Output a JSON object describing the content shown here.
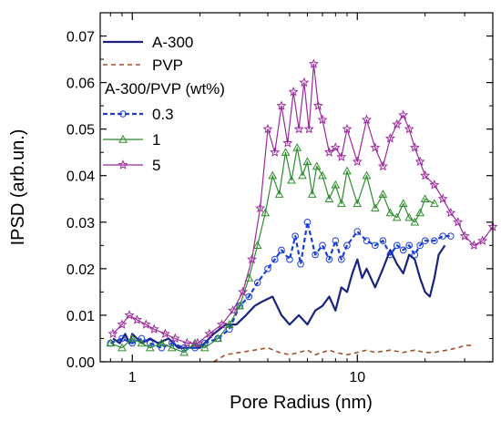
{
  "chart_data": {
    "type": "line",
    "xlabel": "Pore  Radius  (nm)",
    "ylabel": "IPSD  (arb.un.)",
    "xscale": "log",
    "xlim": [
      0.72,
      40
    ],
    "ylim": [
      0,
      0.075
    ],
    "x_ticks": [
      1,
      10
    ],
    "y_ticks": [
      0.0,
      0.01,
      0.02,
      0.03,
      0.04,
      0.05,
      0.06,
      0.07
    ],
    "y_tick_labels": [
      "0.00",
      "0.01",
      "0.02",
      "0.03",
      "0.04",
      "0.05",
      "0.06",
      "0.07"
    ],
    "legend_placement": "top-left",
    "legend_group_title": "A-300/PVP (wt%)",
    "series": [
      {
        "name": "A-300",
        "color": "#1a237e",
        "style": "solid",
        "marker": "none",
        "x": [
          0.82,
          0.88,
          0.93,
          0.97,
          1.0,
          1.05,
          1.1,
          1.2,
          1.3,
          1.45,
          1.6,
          1.8,
          2.0,
          2.3,
          2.6,
          2.9,
          3.2,
          3.5,
          3.8,
          4.2,
          4.6,
          5.0,
          5.5,
          6.0,
          6.5,
          7.0,
          7.5,
          8.0,
          8.5,
          9.0,
          9.5,
          10.0,
          10.5,
          11.0,
          12.0,
          13.0,
          14.0,
          15.0,
          16.0,
          17.0,
          18.0,
          19.0,
          20.0,
          21.0,
          22.0,
          23.0,
          24.5
        ],
        "y": [
          0.005,
          0.004,
          0.006,
          0.004,
          0.006,
          0.005,
          0.004,
          0.005,
          0.004,
          0.005,
          0.003,
          0.003,
          0.003,
          0.006,
          0.008,
          0.008,
          0.01,
          0.012,
          0.013,
          0.014,
          0.01,
          0.008,
          0.01,
          0.008,
          0.011,
          0.012,
          0.014,
          0.011,
          0.016,
          0.015,
          0.019,
          0.022,
          0.018,
          0.02,
          0.016,
          0.02,
          0.024,
          0.021,
          0.019,
          0.023,
          0.022,
          0.018,
          0.015,
          0.014,
          0.018,
          0.023,
          0.025
        ]
      },
      {
        "name": "PVP",
        "color": "#a0522d",
        "style": "dashed",
        "marker": "none",
        "x": [
          2.3,
          2.6,
          3.0,
          3.5,
          4.0,
          4.5,
          5.0,
          5.5,
          6.0,
          6.5,
          7.0,
          7.5,
          8.0,
          9.0,
          10.0,
          11.0,
          12.0,
          14.0,
          16.0,
          18.0,
          20.0,
          22.0,
          25.0,
          28.0,
          30.0,
          32.0
        ],
        "y": [
          0.0,
          0.0015,
          0.002,
          0.0025,
          0.003,
          0.002,
          0.0015,
          0.002,
          0.0025,
          0.0015,
          0.002,
          0.0025,
          0.002,
          0.0015,
          0.002,
          0.0025,
          0.002,
          0.0025,
          0.002,
          0.0025,
          0.002,
          0.002,
          0.0025,
          0.003,
          0.0035,
          0.0035
        ]
      },
      {
        "name": "0.3",
        "color": "#1a3fd6",
        "style": "dashed",
        "marker": "circle",
        "x": [
          0.8,
          0.9,
          1.0,
          1.1,
          1.2,
          1.35,
          1.5,
          1.7,
          1.9,
          2.1,
          2.4,
          2.7,
          3.0,
          3.3,
          3.6,
          4.0,
          4.3,
          4.6,
          5.0,
          5.3,
          5.6,
          6.0,
          6.5,
          7.0,
          7.5,
          8.0,
          8.5,
          9.0,
          10.0,
          11.0,
          12.0,
          13.0,
          14.0,
          15.0,
          16.0,
          17.0,
          18.0,
          19.0,
          20.0,
          22.0,
          24.0,
          26.0
        ],
        "y": [
          0.004,
          0.005,
          0.004,
          0.005,
          0.004,
          0.003,
          0.004,
          0.003,
          0.003,
          0.004,
          0.005,
          0.007,
          0.012,
          0.014,
          0.017,
          0.02,
          0.022,
          0.024,
          0.022,
          0.027,
          0.021,
          0.03,
          0.023,
          0.025,
          0.022,
          0.026,
          0.022,
          0.025,
          0.028,
          0.026,
          0.025,
          0.026,
          0.023,
          0.025,
          0.024,
          0.025,
          0.023,
          0.025,
          0.026,
          0.026,
          0.027,
          0.027
        ]
      },
      {
        "name": "1",
        "color": "#2e8b2e",
        "style": "solid",
        "marker": "triangle",
        "x": [
          0.8,
          0.9,
          1.0,
          1.1,
          1.2,
          1.35,
          1.5,
          1.7,
          1.9,
          2.1,
          2.4,
          2.7,
          3.0,
          3.3,
          3.6,
          3.9,
          4.2,
          4.5,
          4.8,
          5.1,
          5.4,
          5.7,
          6.0,
          6.3,
          6.6,
          7.0,
          7.5,
          8.0,
          8.5,
          9.0,
          10.0,
          11.0,
          12.0,
          13.0,
          14.0,
          15.0,
          16.0,
          17.0,
          18.0,
          19.0,
          20.0,
          22.0
        ],
        "y": [
          0.004,
          0.003,
          0.005,
          0.004,
          0.003,
          0.004,
          0.003,
          0.002,
          0.004,
          0.003,
          0.005,
          0.008,
          0.012,
          0.018,
          0.025,
          0.032,
          0.04,
          0.036,
          0.045,
          0.039,
          0.046,
          0.04,
          0.043,
          0.036,
          0.042,
          0.04,
          0.035,
          0.038,
          0.034,
          0.041,
          0.034,
          0.04,
          0.033,
          0.036,
          0.032,
          0.031,
          0.034,
          0.031,
          0.03,
          0.032,
          0.035,
          0.034
        ]
      },
      {
        "name": "5",
        "color": "#9c2a9c",
        "style": "solid",
        "marker": "star",
        "x": [
          0.82,
          0.9,
          0.97,
          1.05,
          1.15,
          1.25,
          1.4,
          1.55,
          1.75,
          1.95,
          2.2,
          2.5,
          2.8,
          3.1,
          3.4,
          3.7,
          4.0,
          4.3,
          4.6,
          4.9,
          5.2,
          5.5,
          5.8,
          6.1,
          6.4,
          6.7,
          7.0,
          7.5,
          8.0,
          8.5,
          9.0,
          10.0,
          11.0,
          12.0,
          13.0,
          14.0,
          15.0,
          16.0,
          17.0,
          18.0,
          19.0,
          20.0,
          22.0,
          24.0,
          26.0,
          28.0,
          30.0,
          33.0,
          36.0,
          40.0
        ],
        "y": [
          0.006,
          0.008,
          0.01,
          0.009,
          0.008,
          0.007,
          0.006,
          0.005,
          0.004,
          0.004,
          0.006,
          0.008,
          0.011,
          0.015,
          0.022,
          0.033,
          0.05,
          0.045,
          0.055,
          0.047,
          0.058,
          0.05,
          0.06,
          0.05,
          0.064,
          0.055,
          0.052,
          0.045,
          0.046,
          0.044,
          0.05,
          0.043,
          0.052,
          0.046,
          0.042,
          0.048,
          0.051,
          0.053,
          0.05,
          0.046,
          0.043,
          0.04,
          0.038,
          0.035,
          0.032,
          0.03,
          0.027,
          0.025,
          0.026,
          0.029
        ]
      }
    ]
  }
}
